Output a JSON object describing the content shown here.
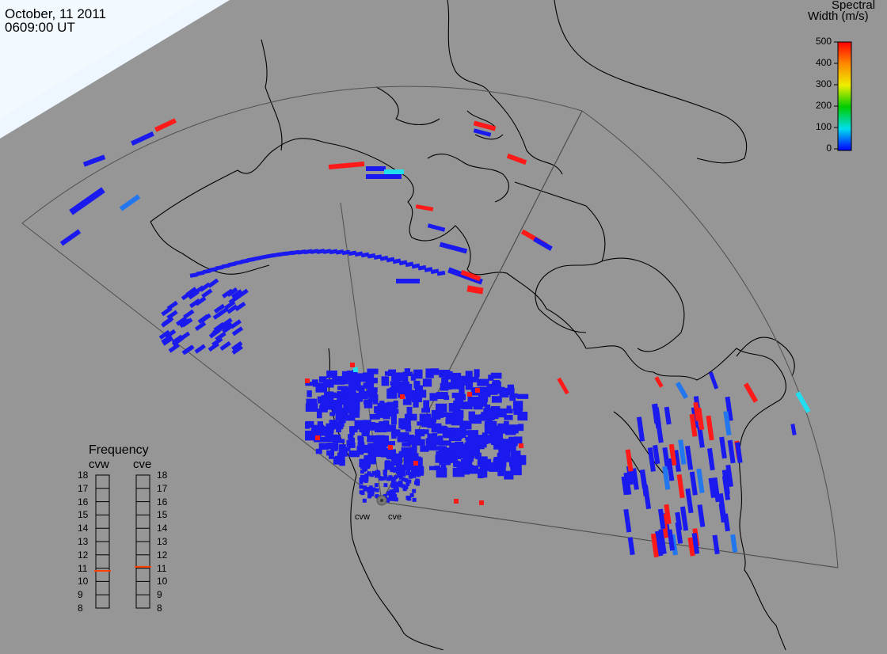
{
  "header": {
    "date": "October, 11 2011",
    "time": "0609:00 UT"
  },
  "colorbar": {
    "title_line1": "Spectral",
    "title_line2": "Width (m/s)",
    "ticks": [
      "500",
      "400",
      "300",
      "200",
      "100",
      "0"
    ],
    "colors": [
      "#ff0000",
      "#ff8800",
      "#ffdd00",
      "#00cc00",
      "#00dddd",
      "#0000ff"
    ]
  },
  "frequency_panel": {
    "title": "Frequency",
    "radars": [
      {
        "name": "cvw",
        "value": 10.8
      },
      {
        "name": "cve",
        "value": 11.1
      }
    ],
    "scale": [
      "18",
      "17",
      "16",
      "15",
      "14",
      "13",
      "12",
      "11",
      "10",
      "9",
      "8"
    ],
    "marker_color": "#ff4000"
  },
  "radar_sites": {
    "west": "cvw",
    "east": "cve"
  },
  "colors": {
    "background": "#969696",
    "coastline": "#000000",
    "fov_outline": "#555555",
    "low_width": "#1a1aee",
    "high_width": "#ff1a1a",
    "mid_width": "#2277ee",
    "cyan": "#22ddee"
  }
}
